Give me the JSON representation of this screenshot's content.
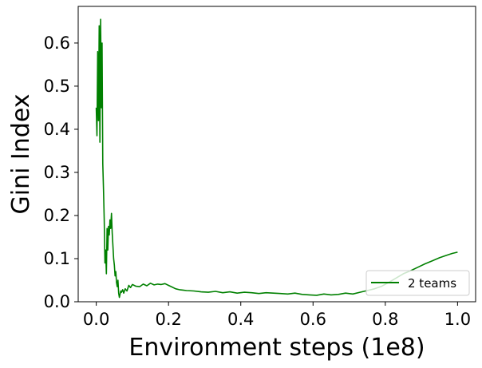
{
  "chart_data": {
    "type": "line",
    "xlabel": "Environment steps (1e8)",
    "ylabel": "Gini Index",
    "xlim": [
      -0.05,
      1.05
    ],
    "ylim": [
      0.0,
      0.685
    ],
    "xticks": [
      0.0,
      0.2,
      0.4,
      0.6,
      0.8,
      1.0
    ],
    "xtick_labels": [
      "0.0",
      "0.2",
      "0.4",
      "0.6",
      "0.8",
      "1.0"
    ],
    "yticks": [
      0.0,
      0.1,
      0.2,
      0.3,
      0.4,
      0.5,
      0.6
    ],
    "ytick_labels": [
      "0.0",
      "0.1",
      "0.2",
      "0.3",
      "0.4",
      "0.5",
      "0.6"
    ],
    "grid": false,
    "legend_position": "lower-right",
    "series": [
      {
        "name": "2 teams",
        "color": "#008000",
        "x": [
          0.0,
          0.002,
          0.004,
          0.006,
          0.008,
          0.01,
          0.012,
          0.014,
          0.016,
          0.018,
          0.02,
          0.022,
          0.024,
          0.026,
          0.028,
          0.03,
          0.032,
          0.034,
          0.036,
          0.038,
          0.04,
          0.042,
          0.044,
          0.046,
          0.048,
          0.05,
          0.052,
          0.054,
          0.056,
          0.058,
          0.06,
          0.062,
          0.064,
          0.066,
          0.068,
          0.07,
          0.073,
          0.076,
          0.08,
          0.085,
          0.09,
          0.095,
          0.1,
          0.11,
          0.12,
          0.13,
          0.14,
          0.15,
          0.16,
          0.17,
          0.18,
          0.19,
          0.2,
          0.21,
          0.22,
          0.23,
          0.24,
          0.25,
          0.27,
          0.29,
          0.31,
          0.33,
          0.35,
          0.37,
          0.39,
          0.41,
          0.43,
          0.45,
          0.47,
          0.49,
          0.51,
          0.53,
          0.55,
          0.57,
          0.59,
          0.61,
          0.63,
          0.65,
          0.67,
          0.69,
          0.71,
          0.73,
          0.75,
          0.77,
          0.79,
          0.81,
          0.83,
          0.85,
          0.87,
          0.89,
          0.91,
          0.93,
          0.95,
          0.97,
          0.985,
          1.0
        ],
        "values": [
          0.45,
          0.385,
          0.58,
          0.42,
          0.64,
          0.37,
          0.655,
          0.45,
          0.6,
          0.32,
          0.26,
          0.19,
          0.09,
          0.12,
          0.065,
          0.17,
          0.12,
          0.175,
          0.155,
          0.19,
          0.17,
          0.205,
          0.16,
          0.13,
          0.1,
          0.085,
          0.06,
          0.07,
          0.045,
          0.035,
          0.05,
          0.02,
          0.01,
          0.018,
          0.025,
          0.022,
          0.028,
          0.02,
          0.03,
          0.025,
          0.038,
          0.033,
          0.04,
          0.036,
          0.035,
          0.041,
          0.037,
          0.043,
          0.039,
          0.041,
          0.04,
          0.042,
          0.038,
          0.034,
          0.03,
          0.028,
          0.027,
          0.026,
          0.025,
          0.023,
          0.022,
          0.024,
          0.021,
          0.023,
          0.02,
          0.022,
          0.021,
          0.019,
          0.021,
          0.02,
          0.019,
          0.018,
          0.02,
          0.017,
          0.016,
          0.015,
          0.018,
          0.016,
          0.017,
          0.02,
          0.018,
          0.022,
          0.026,
          0.03,
          0.036,
          0.045,
          0.055,
          0.065,
          0.072,
          0.08,
          0.088,
          0.095,
          0.102,
          0.108,
          0.112,
          0.115
        ]
      }
    ]
  }
}
